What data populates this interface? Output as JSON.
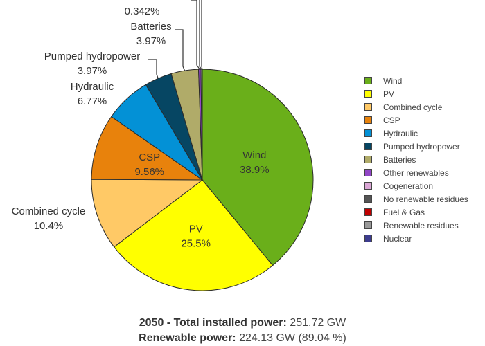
{
  "chart_data": {
    "type": "pie",
    "slices": [
      {
        "name": "Wind",
        "percent": 38.9,
        "label": "38.9%",
        "color": "#6aaf1a"
      },
      {
        "name": "PV",
        "percent": 25.5,
        "label": "25.5%",
        "color": "#ffff00"
      },
      {
        "name": "Combined cycle",
        "percent": 10.4,
        "label": "10.4%",
        "color": "#ffc966"
      },
      {
        "name": "CSP",
        "percent": 9.56,
        "label": "9.56%",
        "color": "#e8820c"
      },
      {
        "name": "Hydraulic",
        "percent": 6.77,
        "label": "6.77%",
        "color": "#0391d6"
      },
      {
        "name": "Pumped hydropower",
        "percent": 3.97,
        "label": "3.97%",
        "color": "#064663"
      },
      {
        "name": "Batteries",
        "percent": 3.97,
        "label": "3.97%",
        "color": "#b0ab69"
      },
      {
        "name": "Other renewables",
        "percent": 0.342,
        "label": "0.342%",
        "color": "#9146c6"
      },
      {
        "name": "Cogeneration",
        "percent": 0.0,
        "label": "",
        "color": "#dba7d6"
      },
      {
        "name": "No renewable residues",
        "percent": 0.0,
        "label": "",
        "color": "#555555"
      },
      {
        "name": "Fuel & Gas",
        "percent": 0.0,
        "label": "",
        "color": "#c00000"
      },
      {
        "name": "Renewable residues",
        "percent": 0.2,
        "label": "",
        "color": "#999999"
      },
      {
        "name": "Nuclear",
        "percent": 0.0,
        "label": "",
        "color": "#3d3c8e"
      }
    ],
    "legend": {
      "position": "right",
      "items": [
        "Wind",
        "PV",
        "Combined cycle",
        "CSP",
        "Hydraulic",
        "Pumped hydropower",
        "Batteries",
        "Other renewables",
        "Cogeneration",
        "No renewable residues",
        "Fuel & Gas",
        "Renewable residues",
        "Nuclear"
      ]
    },
    "caption": {
      "line1_label": "2050 - Total installed power:",
      "line1_value": "251.72 GW",
      "line2_label": "Renewable power:",
      "line2_value": "224.13 GW (89.04 %)"
    }
  }
}
